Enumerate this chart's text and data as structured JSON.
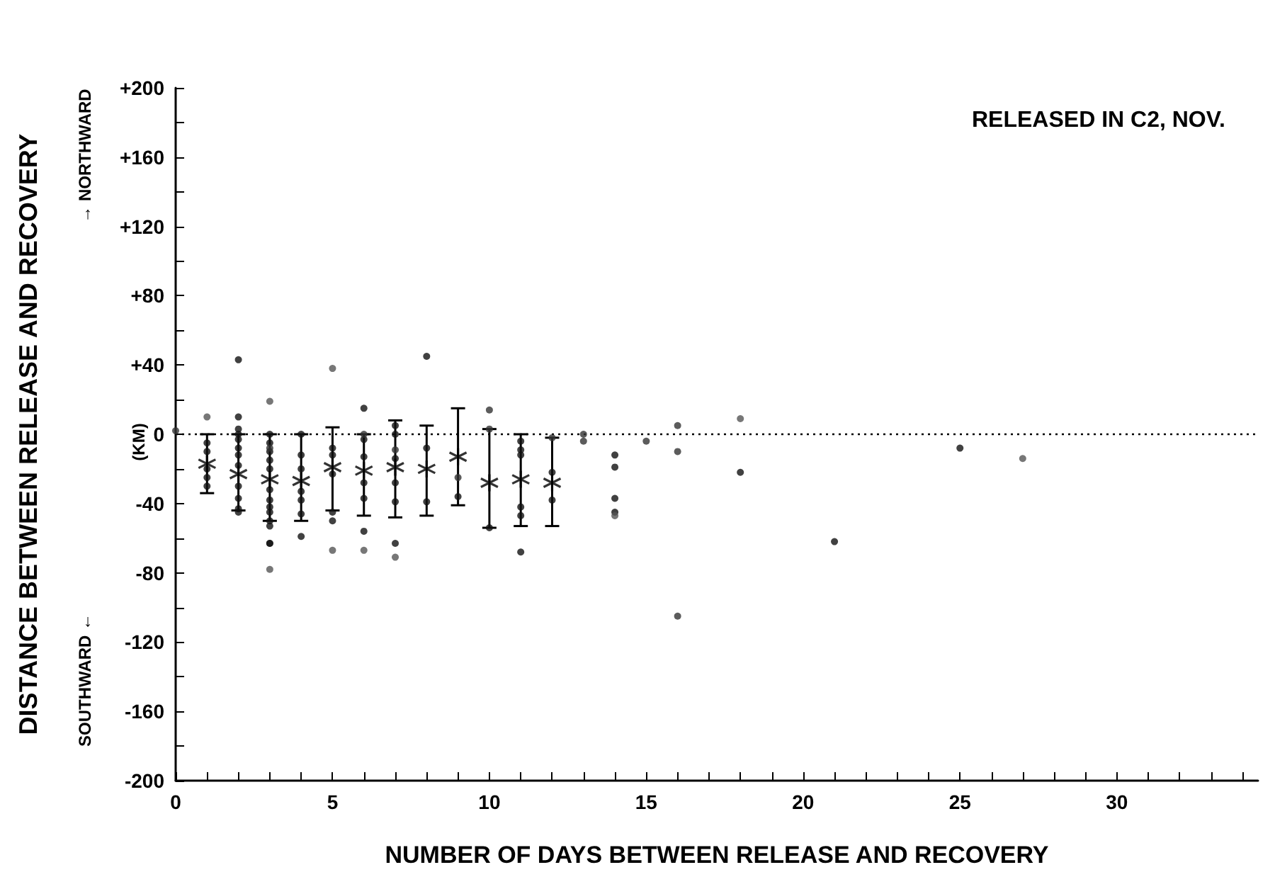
{
  "chart_data": {
    "type": "scatter",
    "title": "RELEASED IN C2, NOV.",
    "xlabel": "NUMBER OF DAYS BETWEEN RELEASE AND RECOVERY",
    "ylabel": "DISTANCE BETWEEN RELEASE AND RECOVERY",
    "annotations": [
      "→ NORTHWARD",
      "SOUTHWARD ←",
      "(KM)"
    ],
    "xlim": [
      0,
      34.5
    ],
    "ylim": [
      -200,
      200
    ],
    "xticks": [
      0,
      {
        "value": 1,
        "label": null
      },
      {
        "value": 2,
        "label": null
      },
      {
        "value": 3,
        "label": null
      },
      {
        "value": 4,
        "label": null
      },
      5,
      {
        "value": 6,
        "label": null
      },
      {
        "value": 7,
        "label": null
      },
      {
        "value": 8,
        "label": null
      },
      {
        "value": 9,
        "label": null
      },
      10,
      {
        "value": 11,
        "label": null
      },
      {
        "value": 12,
        "label": null
      },
      {
        "value": 13,
        "label": null
      },
      {
        "value": 14,
        "label": null
      },
      15,
      {
        "value": 16,
        "label": null
      },
      {
        "value": 17,
        "label": null
      },
      {
        "value": 18,
        "label": null
      },
      {
        "value": 19,
        "label": null
      },
      20,
      {
        "value": 21,
        "label": null
      },
      {
        "value": 22,
        "label": null
      },
      {
        "value": 23,
        "label": null
      },
      {
        "value": 24,
        "label": null
      },
      25,
      {
        "value": 26,
        "label": null
      },
      {
        "value": 27,
        "label": null
      },
      {
        "value": 28,
        "label": null
      },
      {
        "value": 29,
        "label": null
      },
      30,
      {
        "value": 31,
        "label": null
      },
      {
        "value": 32,
        "label": null
      },
      {
        "value": 33,
        "label": null
      },
      {
        "value": 34,
        "label": null
      }
    ],
    "yticks": [
      -200,
      {
        "value": -180,
        "label": null
      },
      -160,
      {
        "value": -140,
        "label": null
      },
      -120,
      {
        "value": -100,
        "label": null
      },
      -80,
      {
        "value": -60,
        "label": null
      },
      -40,
      {
        "value": -20,
        "label": null
      },
      0,
      {
        "value": 20,
        "label": null
      },
      {
        "value": 40,
        "label": "+40"
      },
      {
        "value": 60,
        "label": null
      },
      {
        "value": 80,
        "label": "+80"
      },
      {
        "value": 100,
        "label": null
      },
      {
        "value": 120,
        "label": "+120"
      },
      {
        "value": 140,
        "label": null
      },
      {
        "value": 160,
        "label": "+160"
      },
      {
        "value": 180,
        "label": null
      },
      {
        "value": 200,
        "label": "+200"
      }
    ],
    "grid": false,
    "ref_lines": [
      {
        "axis": "y",
        "value": 0,
        "label": null,
        "color": "#000000",
        "line_style": "dotted"
      }
    ],
    "series": [
      {
        "marker": "circle",
        "color": "#111111",
        "x": [
          2,
          2,
          2,
          2,
          2,
          2,
          2,
          2,
          2,
          2,
          2,
          2,
          1,
          1,
          1,
          1,
          1,
          3,
          3,
          3,
          3,
          3,
          3,
          3,
          3,
          3,
          3,
          3,
          3,
          3,
          4,
          4,
          4,
          4,
          4,
          4,
          4,
          5,
          5,
          5,
          5,
          5,
          6,
          6,
          6,
          6,
          6,
          6,
          7,
          7,
          7,
          7,
          7,
          7,
          8,
          8,
          8,
          9,
          10,
          11,
          11,
          11,
          11,
          11,
          11,
          12,
          12,
          14,
          14,
          14,
          14,
          18,
          21,
          25
        ],
        "values": [
          43,
          10,
          3,
          0,
          -3,
          -8,
          -12,
          -18,
          -30,
          -37,
          -43,
          -45,
          -5,
          -10,
          -20,
          -25,
          -30,
          0,
          -5,
          -10,
          -15,
          -20,
          -32,
          -38,
          -42,
          -45,
          -50,
          -53,
          -63,
          -63,
          0,
          -12,
          -20,
          -33,
          -38,
          -46,
          -59,
          -8,
          -12,
          -23,
          -45,
          -50,
          15,
          -3,
          -13,
          -28,
          -37,
          -56,
          5,
          0,
          -14,
          -28,
          -39,
          -63,
          45,
          -8,
          -39,
          -36,
          -54,
          -4,
          -9,
          -12,
          -42,
          -47,
          -68,
          -22,
          -38,
          -12,
          -19,
          -37,
          -45,
          -22,
          -62,
          -8
        ]
      },
      {
        "marker": "circle",
        "color": "#555555",
        "x": [
          1,
          3,
          3,
          5,
          5,
          6,
          7,
          14,
          18,
          27
        ],
        "values": [
          10,
          19,
          -78,
          38,
          -67,
          -67,
          -71,
          -47,
          9,
          -14
        ]
      },
      {
        "marker": "circle",
        "color": "#333333",
        "x": [
          0,
          3,
          6,
          7,
          9,
          10,
          10,
          12,
          13,
          13,
          15,
          16,
          16,
          16
        ],
        "values": [
          2,
          -8,
          0,
          -9,
          -25,
          14,
          3,
          -2,
          0,
          -4,
          -4,
          5,
          -10,
          -105
        ]
      },
      {
        "marker": "cross",
        "color": "#000000",
        "x": [
          1,
          2,
          3,
          4,
          5,
          6,
          7,
          8,
          9,
          10,
          11,
          12
        ],
        "values": [
          -17,
          -23,
          -26,
          -27,
          -19,
          -21,
          -19,
          -20,
          -13,
          -28,
          -26,
          -28
        ],
        "errors": [
          [
            -34,
            0
          ],
          [
            -44,
            0
          ],
          [
            -50,
            0
          ],
          [
            -50,
            0
          ],
          [
            -44,
            4
          ],
          [
            -47,
            0
          ],
          [
            -48,
            8
          ],
          [
            -47,
            5
          ],
          [
            -41,
            15
          ],
          [
            -54,
            3
          ],
          [
            -53,
            0
          ],
          [
            -53,
            -2
          ]
        ]
      }
    ]
  }
}
